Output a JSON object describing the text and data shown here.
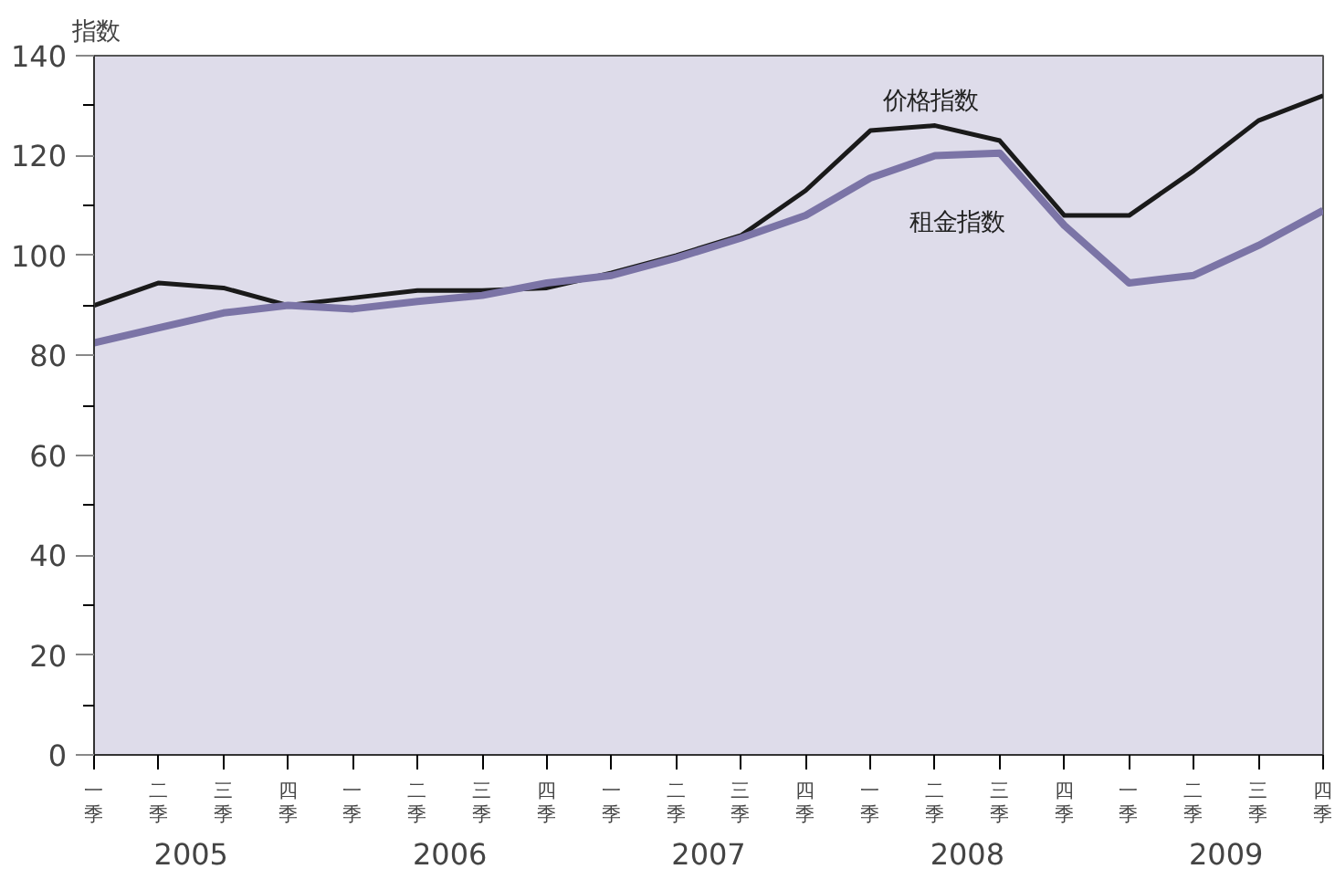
{
  "chart_data": {
    "type": "line",
    "ylabel": "指数",
    "categories": [
      "一季",
      "二季",
      "三季",
      "四季",
      "一季",
      "二季",
      "三季",
      "四季",
      "一季",
      "二季",
      "三季",
      "四季",
      "一季",
      "二季",
      "三季",
      "四季",
      "一季",
      "二季",
      "三季",
      "四季"
    ],
    "series": [
      {
        "name": "价格指数",
        "color": "#1a1a1a",
        "values": [
          90,
          94.5,
          93.5,
          90,
          91.5,
          93,
          93,
          93.5,
          96.5,
          100,
          104,
          113,
          125,
          126,
          123,
          108,
          108,
          117,
          127,
          132
        ]
      },
      {
        "name": "租金指数",
        "color": "#7b74a6",
        "values": [
          82.5,
          85.5,
          88.5,
          90,
          89.3,
          90.8,
          92,
          94.5,
          96,
          99.5,
          103.5,
          108,
          115.5,
          120,
          120.5,
          106,
          94.5,
          96,
          102,
          109
        ]
      }
    ],
    "annotations": [
      "2005",
      "2006",
      "2007",
      "2008",
      "2009"
    ],
    "ylim": [
      0,
      140
    ],
    "yticks": [
      0,
      20,
      40,
      60,
      80,
      100,
      120,
      140
    ],
    "grid": false,
    "marker": "none",
    "line_style": "solid"
  }
}
